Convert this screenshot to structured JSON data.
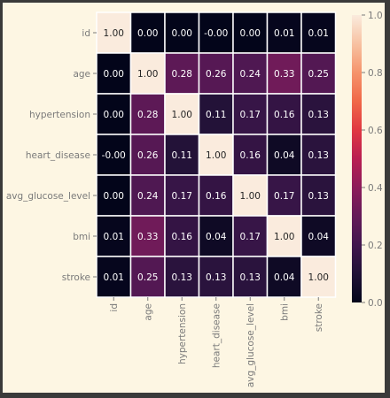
{
  "chart_data": {
    "type": "heatmap",
    "title": "",
    "row_labels": [
      "id",
      "age",
      "hypertension",
      "heart_disease",
      "avg_glucose_level",
      "bmi",
      "stroke"
    ],
    "col_labels": [
      "id",
      "age",
      "hypertension",
      "heart_disease",
      "avg_glucose_level",
      "bmi",
      "stroke"
    ],
    "values": [
      [
        1.0,
        0.0,
        0.0,
        -0.0,
        0.0,
        0.01,
        0.01
      ],
      [
        0.0,
        1.0,
        0.28,
        0.26,
        0.24,
        0.33,
        0.25
      ],
      [
        0.0,
        0.28,
        1.0,
        0.11,
        0.17,
        0.16,
        0.13
      ],
      [
        -0.0,
        0.26,
        0.11,
        1.0,
        0.16,
        0.04,
        0.13
      ],
      [
        0.0,
        0.24,
        0.17,
        0.16,
        1.0,
        0.17,
        0.13
      ],
      [
        0.01,
        0.33,
        0.16,
        0.04,
        0.17,
        1.0,
        0.04
      ],
      [
        0.01,
        0.25,
        0.13,
        0.13,
        0.13,
        0.04,
        1.0
      ]
    ],
    "cell_labels": [
      [
        "1.00",
        "0.00",
        "0.00",
        "-0.00",
        "0.00",
        "0.01",
        "0.01"
      ],
      [
        "0.00",
        "1.00",
        "0.28",
        "0.26",
        "0.24",
        "0.33",
        "0.25"
      ],
      [
        "0.00",
        "0.28",
        "1.00",
        "0.11",
        "0.17",
        "0.16",
        "0.13"
      ],
      [
        "-0.00",
        "0.26",
        "0.11",
        "1.00",
        "0.16",
        "0.04",
        "0.13"
      ],
      [
        "0.00",
        "0.24",
        "0.17",
        "0.16",
        "1.00",
        "0.17",
        "0.13"
      ],
      [
        "0.01",
        "0.33",
        "0.16",
        "0.04",
        "0.17",
        "1.00",
        "0.04"
      ],
      [
        "0.01",
        "0.25",
        "0.13",
        "0.13",
        "0.13",
        "0.04",
        "1.00"
      ]
    ],
    "colorbar": {
      "range": [
        0.0,
        1.0
      ],
      "ticks": [
        "0.0",
        "0.2",
        "0.4",
        "0.6",
        "0.8",
        "1.0"
      ],
      "colormap": "rocket"
    },
    "grid": true,
    "legend": "colorbar-right"
  }
}
